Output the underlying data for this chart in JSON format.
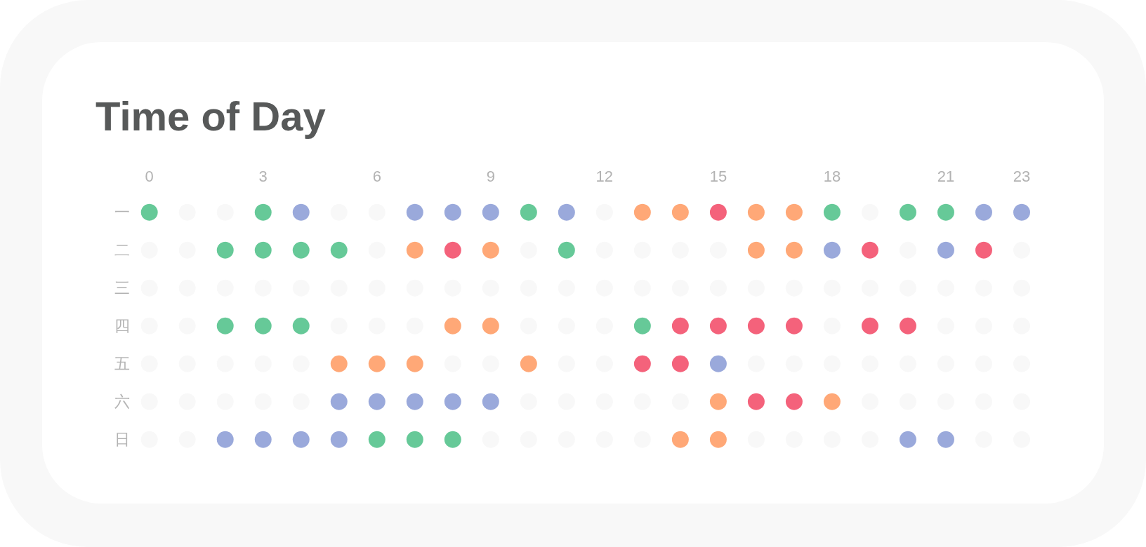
{
  "chart_data": {
    "type": "scatter",
    "title": "Time of Day",
    "marker": "circle",
    "orientation": "horizontal",
    "categories": [
      "一",
      "二",
      "三",
      "四",
      "五",
      "六",
      "日"
    ],
    "xlim": [
      0,
      23
    ],
    "xticks": [
      0,
      3,
      6,
      9,
      12,
      15,
      18,
      21,
      23
    ],
    "series": [
      {
        "color": "#f8f8f8",
        "x": [
          "一",
          "一",
          "一",
          "一",
          "一",
          "一",
          "二",
          "二",
          "二",
          "二",
          "二",
          "二",
          "二",
          "二",
          "二",
          "二",
          "三",
          "三",
          "三",
          "三",
          "三",
          "三",
          "三",
          "三",
          "三",
          "三",
          "三",
          "三",
          "三",
          "三",
          "三",
          "三",
          "三",
          "三",
          "三",
          "三",
          "三",
          "三",
          "三",
          "三",
          "四",
          "四",
          "四",
          "四",
          "四",
          "四",
          "四",
          "四",
          "四",
          "四",
          "四",
          "四",
          "五",
          "五",
          "五",
          "五",
          "五",
          "五",
          "五",
          "五",
          "五",
          "五",
          "五",
          "五",
          "五",
          "五",
          "五",
          "五",
          "五",
          "六",
          "六",
          "六",
          "六",
          "六",
          "六",
          "六",
          "六",
          "六",
          "六",
          "六",
          "六",
          "六",
          "六",
          "六",
          "日",
          "日",
          "日",
          "日",
          "日",
          "日",
          "日",
          "日",
          "日",
          "日",
          "日",
          "日",
          "日"
        ],
        "values": [
          1,
          2,
          5,
          6,
          12,
          19,
          0,
          1,
          6,
          10,
          12,
          13,
          14,
          15,
          20,
          23,
          0,
          1,
          2,
          3,
          4,
          5,
          6,
          7,
          8,
          9,
          10,
          11,
          12,
          13,
          14,
          15,
          16,
          17,
          18,
          19,
          20,
          21,
          22,
          23,
          0,
          1,
          5,
          6,
          7,
          10,
          11,
          12,
          18,
          21,
          22,
          23,
          0,
          1,
          2,
          3,
          4,
          8,
          9,
          11,
          12,
          16,
          17,
          18,
          19,
          20,
          21,
          22,
          23,
          0,
          1,
          2,
          3,
          4,
          10,
          11,
          12,
          13,
          14,
          19,
          20,
          21,
          22,
          23,
          0,
          1,
          9,
          10,
          11,
          12,
          13,
          16,
          17,
          18,
          19,
          22,
          23
        ]
      },
      {
        "color": "#66c998",
        "x": [
          "一",
          "一",
          "一",
          "一",
          "一",
          "一",
          "二",
          "二",
          "二",
          "二",
          "二",
          "四",
          "四",
          "四",
          "四",
          "日",
          "日",
          "日"
        ],
        "values": [
          0,
          3,
          10,
          18,
          20,
          21,
          2,
          3,
          4,
          5,
          11,
          2,
          3,
          4,
          13,
          6,
          7,
          8
        ]
      },
      {
        "color": "#9aa9db",
        "x": [
          "一",
          "一",
          "一",
          "一",
          "一",
          "一",
          "一",
          "二",
          "二",
          "五",
          "六",
          "六",
          "六",
          "六",
          "六",
          "日",
          "日",
          "日",
          "日",
          "日",
          "日"
        ],
        "values": [
          4,
          7,
          8,
          9,
          11,
          22,
          23,
          18,
          21,
          15,
          5,
          6,
          7,
          8,
          9,
          2,
          3,
          4,
          5,
          20,
          21
        ]
      },
      {
        "color": "#ffa877",
        "x": [
          "一",
          "一",
          "一",
          "一",
          "二",
          "二",
          "二",
          "二",
          "四",
          "四",
          "五",
          "五",
          "五",
          "五",
          "六",
          "六",
          "日",
          "日"
        ],
        "values": [
          13,
          14,
          16,
          17,
          7,
          9,
          16,
          17,
          8,
          9,
          5,
          6,
          7,
          10,
          15,
          18,
          14,
          15
        ]
      },
      {
        "color": "#f4627b",
        "x": [
          "一",
          "二",
          "二",
          "二",
          "四",
          "四",
          "四",
          "四",
          "四",
          "四",
          "五",
          "五",
          "六",
          "六"
        ],
        "values": [
          15,
          8,
          19,
          22,
          14,
          15,
          16,
          17,
          19,
          20,
          13,
          14,
          16,
          17
        ]
      }
    ]
  }
}
